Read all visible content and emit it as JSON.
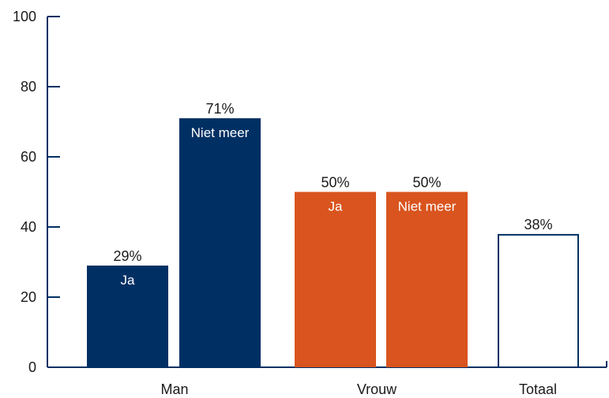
{
  "chart_data": {
    "type": "bar",
    "categories": [
      "Man",
      "Vrouw",
      "Totaal"
    ],
    "y_ticks": [
      "0",
      "20",
      "40",
      "60",
      "80",
      "100"
    ],
    "ylim": [
      0,
      100
    ],
    "grid": false,
    "bars": [
      {
        "category": "Man",
        "value": 29,
        "value_label": "29%",
        "inner_label": "Ja",
        "fill": "#003063",
        "stroke": "#003063"
      },
      {
        "category": "Man",
        "value": 71,
        "value_label": "71%",
        "inner_label": "Niet meer",
        "fill": "#003063",
        "stroke": "#003063"
      },
      {
        "category": "Vrouw",
        "value": 50,
        "value_label": "50%",
        "inner_label": "Ja",
        "fill": "#d9541e",
        "stroke": "#d9541e"
      },
      {
        "category": "Vrouw",
        "value": 50,
        "value_label": "50%",
        "inner_label": "Niet meer",
        "fill": "#d9541e",
        "stroke": "#d9541e"
      },
      {
        "category": "Totaal",
        "value": 38,
        "value_label": "38%",
        "inner_label": "",
        "fill": "#ffffff",
        "stroke": "#003063"
      }
    ],
    "axis_color": "#003063"
  }
}
